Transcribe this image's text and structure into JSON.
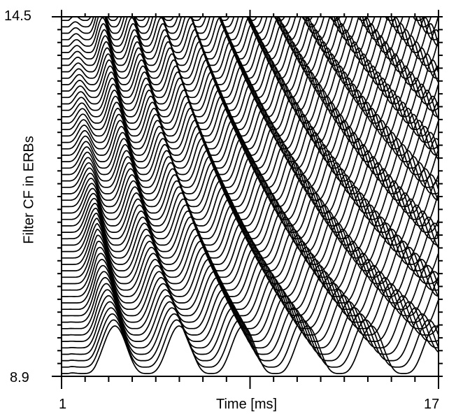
{
  "chart_data": {
    "type": "line",
    "title": "",
    "xlabel": "Time [ms]",
    "ylabel": "Filter CF in ERBs",
    "xlim": [
      1,
      17
    ],
    "ylim": [
      8.9,
      14.5
    ],
    "x_tick_labels": [
      "1",
      "17"
    ],
    "y_tick_labels": [
      "8.9",
      "14.5"
    ],
    "channel_step_erb": 0.1,
    "grid": false,
    "legend": "none",
    "line_color": "#000000"
  }
}
